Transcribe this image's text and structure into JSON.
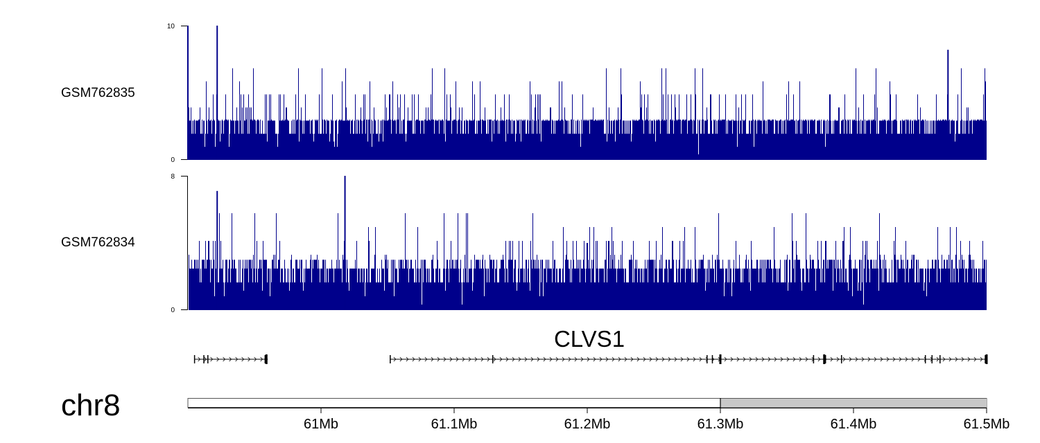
{
  "chart_data": {
    "type": "genome-browser",
    "chromosome": "chr8",
    "region": {
      "start_mb": 60.9,
      "end_mb": 61.5
    },
    "axis_ticks": [
      "61Mb",
      "61.1Mb",
      "61.2Mb",
      "61.3Mb",
      "61.4Mb",
      "61.5Mb"
    ],
    "axis_tick_values_mb": [
      61.0,
      61.1,
      61.2,
      61.3,
      61.4,
      61.5
    ],
    "ideogram_band": {
      "start_mb": 61.3,
      "end_mb": 61.5,
      "label": "",
      "color": "#c8c8c8"
    },
    "tracks": [
      {
        "name": "GSM762835",
        "ylim": [
          0,
          10
        ],
        "ymax_label": "10",
        "ymin_label": "0",
        "color": "#00008b",
        "seed": 7,
        "base_level": 1.3,
        "peaks": [
          {
            "pos_mb": 60.9,
            "value": 10.0
          },
          {
            "pos_mb": 60.922,
            "value": 10.0
          },
          {
            "pos_mb": 61.471,
            "value": 8.2
          }
        ]
      },
      {
        "name": "GSM762834",
        "ylim": [
          0,
          8
        ],
        "ymax_label": "8",
        "ymin_label": "0",
        "color": "#00008b",
        "seed": 13,
        "base_level": 1.1,
        "peaks": [
          {
            "pos_mb": 60.922,
            "value": 7.1
          },
          {
            "pos_mb": 61.018,
            "value": 8.0
          },
          {
            "pos_mb": 61.2,
            "value": 4.0
          }
        ]
      }
    ],
    "gene": {
      "name": "CLVS1",
      "strand": "+",
      "segments": [
        {
          "start_mb": 60.905,
          "end_mb": 60.96
        },
        {
          "start_mb": 61.052,
          "end_mb": 61.5
        }
      ],
      "exons_mb": [
        60.905,
        60.912,
        60.915,
        60.958,
        60.959,
        61.052,
        61.129,
        61.29,
        61.294,
        61.3,
        61.37,
        61.378,
        61.379,
        61.391,
        61.454,
        61.459,
        61.465,
        61.499,
        61.5
      ]
    }
  }
}
